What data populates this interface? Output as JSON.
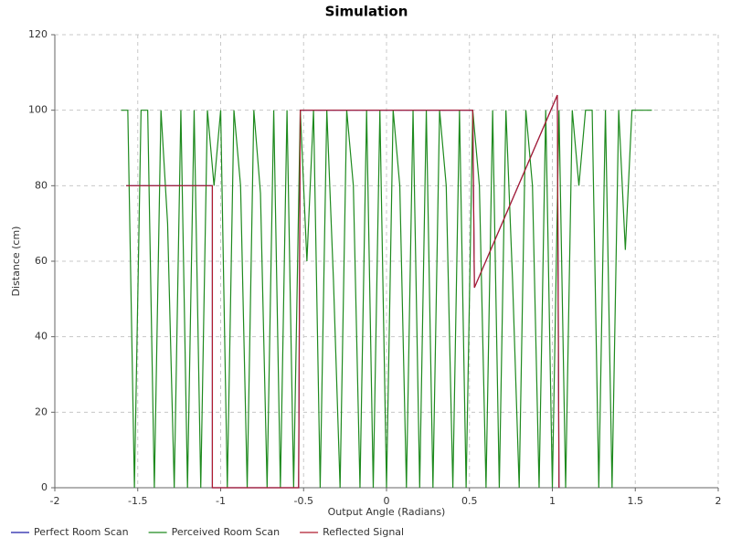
{
  "chart_data": {
    "type": "line",
    "title": "Simulation",
    "x_label": "Output Angle (Radians)",
    "y_label": "Distance (cm)",
    "xlim": [
      -2,
      2
    ],
    "xticks": [
      -2,
      -1.5,
      -1,
      -0.5,
      0,
      0.5,
      1,
      1.5,
      2
    ],
    "ylim": [
      0,
      120
    ],
    "yticks": [
      0,
      20,
      40,
      60,
      80,
      100,
      120
    ],
    "grid": true,
    "legend": "bottom",
    "series": [
      {
        "name": "Perfect Room Scan",
        "color": "#1f1fa8",
        "x": [
          -1.57,
          -1.05,
          -1.05,
          -0.53,
          -0.52,
          0.52,
          0.53,
          1.03,
          1.04
        ],
        "values": [
          80,
          80,
          0,
          0,
          100,
          100,
          53,
          104,
          0
        ]
      },
      {
        "name": "Perceived Room Scan",
        "color": "#1e8a1e",
        "x": [
          -1.6,
          -1.56,
          -1.52,
          -1.48,
          -1.44,
          -1.4,
          -1.36,
          -1.32,
          -1.28,
          -1.24,
          -1.2,
          -1.16,
          -1.12,
          -1.08,
          -1.04,
          -1,
          -0.96,
          -0.92,
          -0.88,
          -0.84,
          -0.8,
          -0.76,
          -0.72,
          -0.68,
          -0.64,
          -0.6,
          -0.56,
          -0.52,
          -0.48,
          -0.44,
          -0.4,
          -0.36,
          -0.32,
          -0.28,
          -0.24,
          -0.2,
          -0.16,
          -0.12,
          -0.08,
          -0.04,
          0,
          0.04,
          0.08,
          0.12,
          0.16,
          0.2,
          0.24,
          0.28,
          0.32,
          0.36,
          0.4,
          0.44,
          0.48,
          0.52,
          0.56,
          0.6,
          0.64,
          0.68,
          0.72,
          0.76,
          0.8,
          0.84,
          0.88,
          0.92,
          0.96,
          1,
          1.04,
          1.08,
          1.12,
          1.16,
          1.2,
          1.24,
          1.28,
          1.32,
          1.36,
          1.4,
          1.44,
          1.48,
          1.52,
          1.56,
          1.6
        ],
        "values": [
          100,
          100,
          0,
          100,
          100,
          0,
          100,
          70,
          0,
          100,
          0,
          100,
          0,
          100,
          80,
          100,
          0,
          100,
          80,
          0,
          100,
          78,
          0,
          100,
          0,
          100,
          0,
          100,
          60,
          100,
          0,
          100,
          55,
          0,
          100,
          80,
          0,
          100,
          0,
          100,
          0,
          100,
          80,
          0,
          100,
          0,
          100,
          0,
          100,
          80,
          0,
          100,
          0,
          100,
          80,
          0,
          100,
          0,
          100,
          55,
          0,
          100,
          80,
          0,
          100,
          0,
          100,
          0,
          100,
          80,
          100,
          100,
          0,
          100,
          0,
          100,
          63,
          100,
          100,
          100,
          100
        ]
      },
      {
        "name": "Reflected Signal",
        "color": "#b01c2e",
        "x": [
          -1.57,
          -1.05,
          -1.05,
          -0.53,
          -0.52,
          0.52,
          0.53,
          1.03,
          1.04
        ],
        "values": [
          80,
          80,
          0,
          0,
          100,
          100,
          53,
          104,
          0
        ]
      }
    ]
  }
}
